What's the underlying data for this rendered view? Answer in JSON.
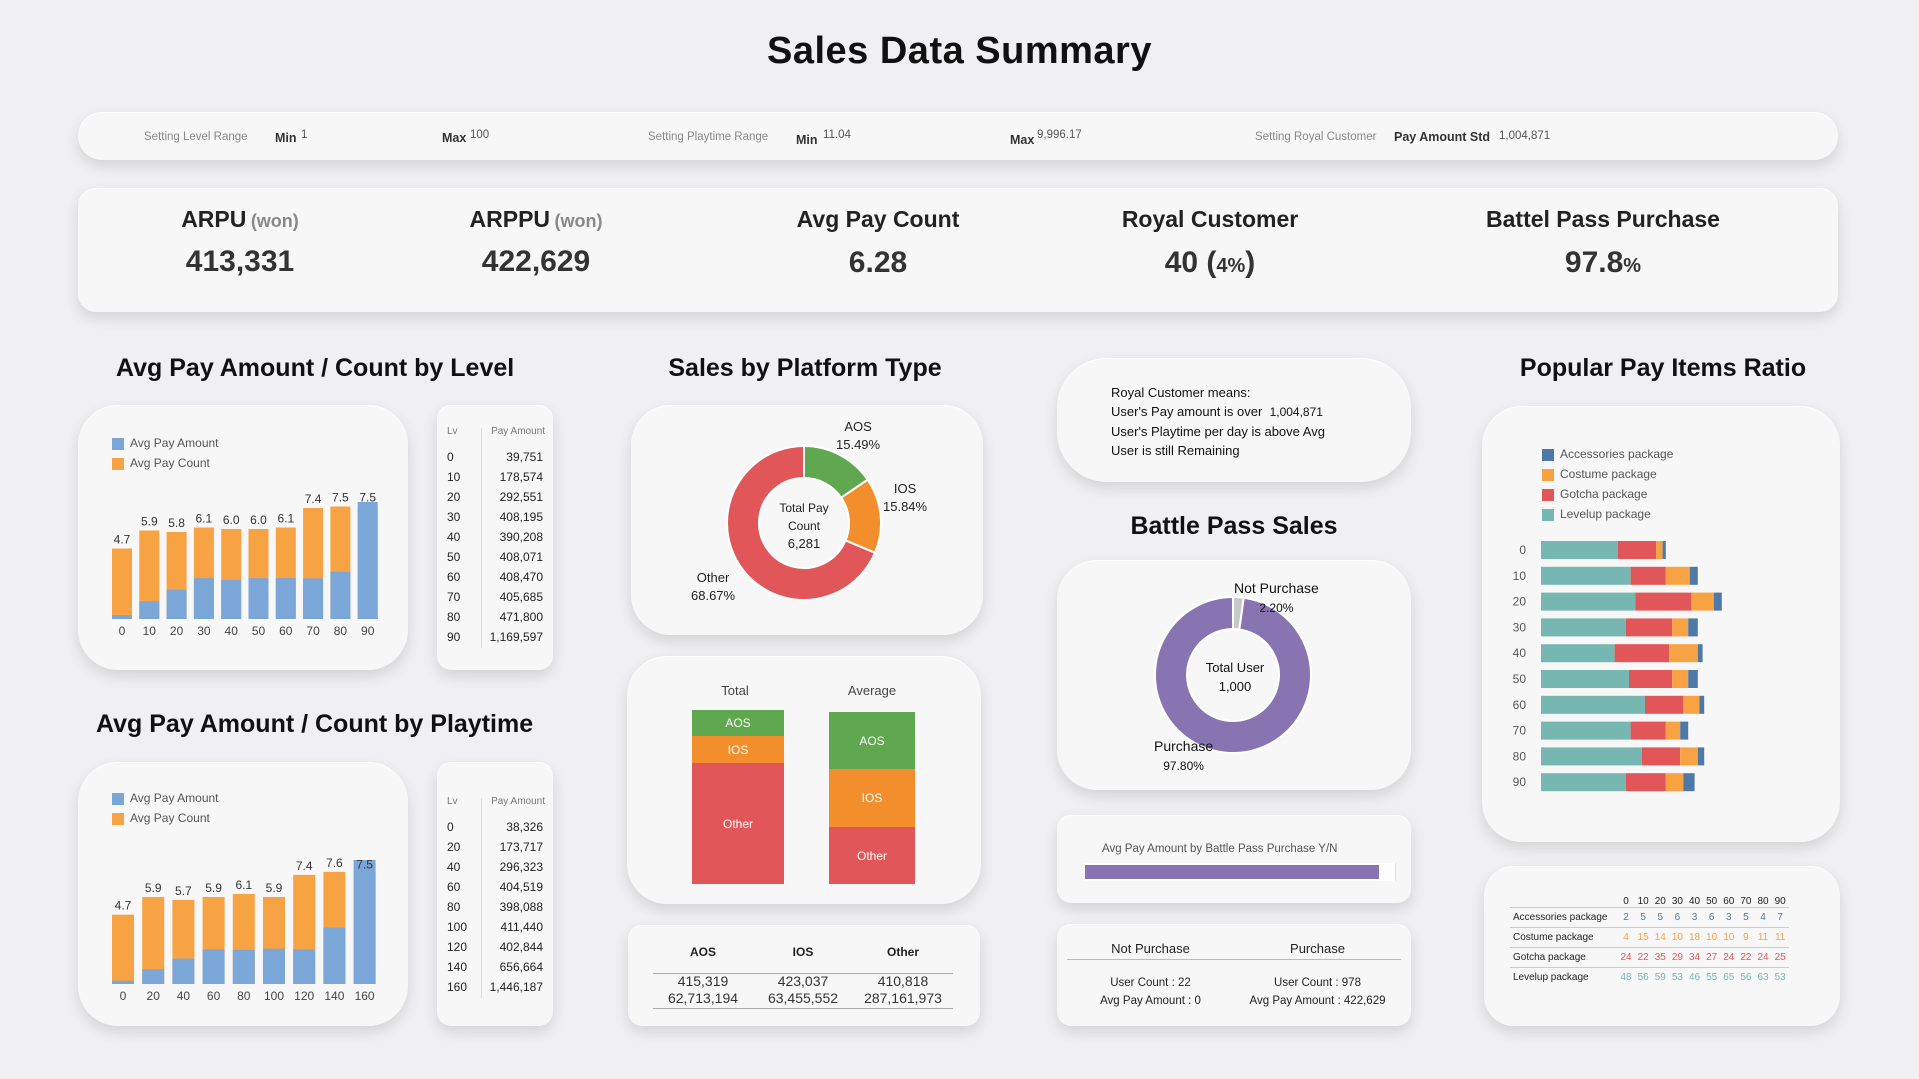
{
  "title": "Sales Data Summary",
  "settings": {
    "level_range_label": "Setting Level Range",
    "min_label": "Min",
    "level_min": "1",
    "max_label": "Max",
    "level_max": "100",
    "playtime_range_label": "Setting Playtime Range",
    "playtime_min": "11.04",
    "playtime_max": "9,996.17",
    "royal_label": "Setting Royal Customer",
    "pay_amount_std_label": "Pay Amount Std",
    "pay_amount_std": "1,004,871"
  },
  "kpis": {
    "arpu": {
      "label": "ARPU",
      "unit": "(won)",
      "value": "413,331"
    },
    "arppu": {
      "label": "ARPPU",
      "unit": "(won)",
      "value": "422,629"
    },
    "avg_pay_count": {
      "label": "Avg Pay Count",
      "value": "6.28"
    },
    "royal_customer": {
      "label": "Royal Customer",
      "value": "40 (",
      "pct": "4%",
      "close": ")"
    },
    "battle_pass": {
      "label": "Battel Pass Purchase",
      "value": "97.8",
      "pct": "%"
    }
  },
  "level_section": {
    "title": "Avg Pay Amount / Count by Level",
    "table_header_lv": "Lv",
    "table_header_amount": "Pay Amount",
    "rows": [
      {
        "lv": "0",
        "amount": "39,751"
      },
      {
        "lv": "10",
        "amount": "178,574"
      },
      {
        "lv": "20",
        "amount": "292,551"
      },
      {
        "lv": "30",
        "amount": "408,195"
      },
      {
        "lv": "40",
        "amount": "390,208"
      },
      {
        "lv": "50",
        "amount": "408,071"
      },
      {
        "lv": "60",
        "amount": "408,470"
      },
      {
        "lv": "70",
        "amount": "405,685"
      },
      {
        "lv": "80",
        "amount": "471,800"
      },
      {
        "lv": "90",
        "amount": "1,169,597"
      }
    ]
  },
  "playtime_section": {
    "title": "Avg Pay Amount / Count by Playtime",
    "table_header_lv": "Lv",
    "table_header_amount": "Pay Amount",
    "rows": [
      {
        "lv": "0",
        "amount": "38,326"
      },
      {
        "lv": "20",
        "amount": "173,717"
      },
      {
        "lv": "40",
        "amount": "296,323"
      },
      {
        "lv": "60",
        "amount": "404,519"
      },
      {
        "lv": "80",
        "amount": "398,088"
      },
      {
        "lv": "100",
        "amount": "411,440"
      },
      {
        "lv": "120",
        "amount": "402,844"
      },
      {
        "lv": "140",
        "amount": "656,664"
      },
      {
        "lv": "160",
        "amount": "1,446,187"
      }
    ]
  },
  "platform_section": {
    "title": "Sales by Platform Type",
    "donut_center_1": "Total Pay",
    "donut_center_2": "Count",
    "donut_center_3": "6,281",
    "stack_labels": {
      "total": "Total",
      "average": "Average"
    },
    "table": {
      "headers": [
        "AOS",
        "IOS",
        "Other"
      ],
      "row1": [
        "415,319",
        "423,037",
        "410,818"
      ],
      "row2": [
        "62,713,194",
        "63,455,552",
        "287,161,973"
      ]
    }
  },
  "royal_info": {
    "line1": "Royal Customer means:",
    "line2": "User's Pay amount is over",
    "line2_val": "1,004,871",
    "line3": "User's Playtime per day is above Avg",
    "line4": "User is still Remaining"
  },
  "battle_pass_section": {
    "title": "Battle Pass Sales",
    "center_1": "Total User",
    "center_2": "1,000",
    "bar_title": "Avg Pay Amount by Battle Pass Purchase Y/N",
    "np_header": "Not Purchase",
    "p_header": "Purchase",
    "np_user": "User Count : 22",
    "np_avg": "Avg Pay Amount : 0",
    "p_user": "User Count : 978",
    "p_avg": "Avg Pay Amount : 422,629"
  },
  "popular_section": {
    "title": "Popular Pay Items Ratio",
    "table_cols": [
      "0",
      "10",
      "20",
      "30",
      "40",
      "50",
      "60",
      "70",
      "80",
      "90"
    ],
    "table_rows": [
      {
        "label": "Accessories package",
        "values": [
          "2",
          "5",
          "5",
          "6",
          "3",
          "6",
          "3",
          "5",
          "4",
          "7"
        ]
      },
      {
        "label": "Costume package",
        "values": [
          "4",
          "15",
          "14",
          "10",
          "18",
          "10",
          "10",
          "9",
          "11",
          "11"
        ]
      },
      {
        "label": "Gotcha package",
        "values": [
          "24",
          "22",
          "35",
          "29",
          "34",
          "27",
          "24",
          "22",
          "24",
          "25"
        ]
      },
      {
        "label": "Levelup package",
        "values": [
          "48",
          "56",
          "59",
          "53",
          "46",
          "55",
          "65",
          "56",
          "63",
          "53"
        ]
      }
    ]
  },
  "colors": {
    "blue": "#7ba6d8",
    "orange": "#f7a243",
    "green": "#5fa84f",
    "ios_orange": "#f28e2b",
    "red": "#e15759",
    "purple": "#8774b0",
    "teal": "#76b7b2",
    "steel": "#4e79a7"
  },
  "chart_data": [
    {
      "type": "bar",
      "id": "level-chart",
      "categories": [
        "0",
        "10",
        "20",
        "30",
        "40",
        "50",
        "60",
        "70",
        "80",
        "90"
      ],
      "series": [
        {
          "name": "Avg Pay Amount",
          "values": [
            39751,
            178574,
            292551,
            408195,
            390208,
            408071,
            408470,
            405685,
            471800,
            1169597
          ]
        },
        {
          "name": "Avg Pay Count",
          "values": [
            4.7,
            5.9,
            5.8,
            6.1,
            6.0,
            6.0,
            6.1,
            7.4,
            7.5,
            7.5
          ]
        }
      ],
      "count_labels": [
        "4.7",
        "5.9",
        "5.8",
        "6.1",
        "6.0",
        "6.0",
        "6.1",
        "7.4",
        "7.5",
        "7.5"
      ]
    },
    {
      "type": "bar",
      "id": "playtime-chart",
      "categories": [
        "0",
        "20",
        "40",
        "60",
        "80",
        "100",
        "120",
        "140",
        "160"
      ],
      "series": [
        {
          "name": "Avg Pay Amount",
          "values": [
            38326,
            173717,
            296323,
            404519,
            398088,
            411440,
            402844,
            656664,
            1446187
          ]
        },
        {
          "name": "Avg Pay Count",
          "values": [
            4.7,
            5.9,
            5.7,
            5.9,
            6.1,
            5.9,
            7.4,
            7.6,
            7.5
          ]
        }
      ],
      "count_labels": [
        "4.7",
        "5.9",
        "5.7",
        "5.9",
        "6.1",
        "5.9",
        "7.4",
        "7.6",
        "7.5"
      ]
    },
    {
      "type": "pie",
      "id": "platform-donut",
      "categories": [
        "AOS",
        "IOS",
        "Other"
      ],
      "values": [
        15.49,
        15.84,
        68.67
      ],
      "labels": [
        "15.49%",
        "15.84%",
        "68.67%"
      ]
    },
    {
      "type": "bar",
      "id": "platform-stacks",
      "categories": [
        "Total",
        "Average"
      ],
      "series": [
        {
          "name": "AOS",
          "values": [
            62713194,
            415319
          ]
        },
        {
          "name": "IOS",
          "values": [
            63455552,
            423037
          ]
        },
        {
          "name": "Other",
          "values": [
            287161973,
            410818
          ]
        }
      ]
    },
    {
      "type": "pie",
      "id": "battle-pass-donut",
      "categories": [
        "Not Purchase",
        "Purchase"
      ],
      "values": [
        2.2,
        97.8
      ],
      "labels": [
        "2.20%",
        "97.80%"
      ]
    },
    {
      "type": "bar",
      "id": "battle-pass-bar",
      "categories": [
        "Not Purchase",
        "Purchase"
      ],
      "values": [
        0,
        422629
      ]
    },
    {
      "type": "bar",
      "id": "popular-items",
      "categories": [
        "0",
        "10",
        "20",
        "30",
        "40",
        "50",
        "60",
        "70",
        "80",
        "90"
      ],
      "series": [
        {
          "name": "Levelup package",
          "values": [
            48,
            56,
            59,
            53,
            46,
            55,
            65,
            56,
            63,
            53
          ]
        },
        {
          "name": "Gotcha package",
          "values": [
            24,
            22,
            35,
            29,
            34,
            27,
            24,
            22,
            24,
            25
          ]
        },
        {
          "name": "Costume package",
          "values": [
            4,
            15,
            14,
            10,
            18,
            10,
            10,
            9,
            11,
            11
          ]
        },
        {
          "name": "Accessories package",
          "values": [
            2,
            5,
            5,
            6,
            3,
            6,
            3,
            5,
            4,
            7
          ]
        }
      ],
      "legend": [
        "Accessories package",
        "Costume package",
        "Gotcha package",
        "Levelup package"
      ]
    }
  ]
}
